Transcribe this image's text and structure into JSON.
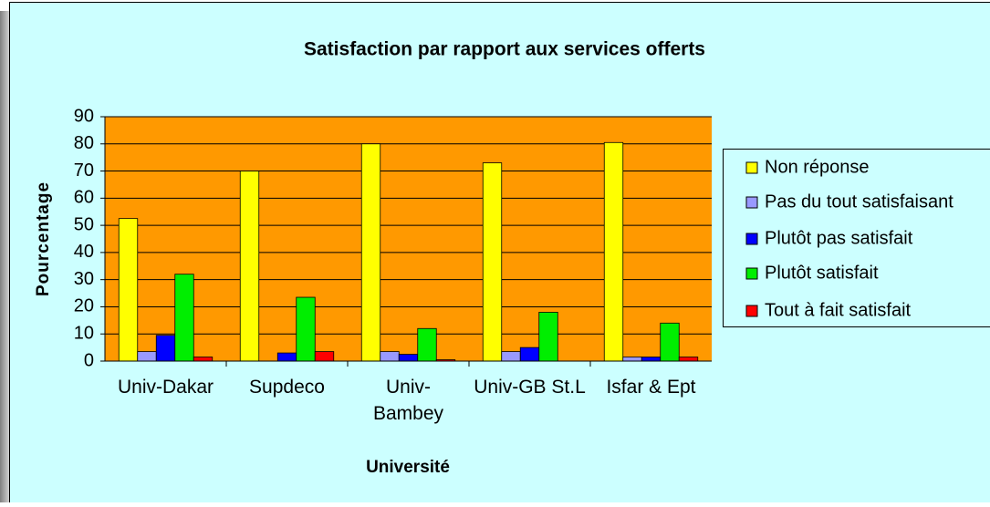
{
  "chart_data": {
    "type": "bar",
    "title": "Satisfaction par rapport aux services offerts",
    "x_label": "Université",
    "y_label": "Pourcentage",
    "categories": [
      "Univ-Dakar",
      "Supdeco",
      "Univ-Bambey",
      "Univ-GB St.L",
      "Isfar & Ept"
    ],
    "series": [
      {
        "name": "Non réponse",
        "color": "#ffff00",
        "values": [
          52.5,
          70,
          80,
          73,
          80.5
        ]
      },
      {
        "name": "Pas du tout satisfaisant",
        "color": "#9999ff",
        "values": [
          3.5,
          0,
          3.5,
          3.5,
          1.5
        ]
      },
      {
        "name": "Plutôt pas satisfait",
        "color": "#0000ff",
        "values": [
          9.5,
          3,
          2.5,
          5,
          1.5
        ]
      },
      {
        "name": "Plutôt satisfait",
        "color": "#00ee00",
        "values": [
          32,
          23.5,
          12,
          18,
          14
        ]
      },
      {
        "name": "Tout à fait satisfait",
        "color": "#ff0000",
        "values": [
          1.5,
          3.5,
          0.5,
          0,
          1.5
        ]
      }
    ],
    "ylim": [
      0,
      90
    ],
    "yticks": [
      0,
      10,
      20,
      30,
      40,
      50,
      60,
      70,
      80,
      90
    ],
    "grid": true,
    "legend": "right",
    "plot_color": "#ff9900",
    "background": "#ccffff"
  }
}
